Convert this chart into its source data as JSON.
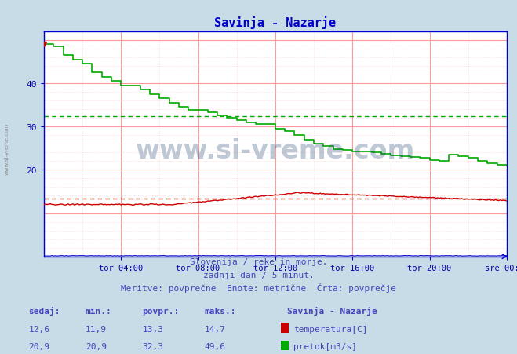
{
  "title": "Savinja - Nazarje",
  "title_color": "#0000cc",
  "bg_color": "#c8dce8",
  "plot_bg_color": "#ffffff",
  "xlabel_ticks": [
    "tor 04:00",
    "tor 08:00",
    "tor 12:00",
    "tor 16:00",
    "tor 20:00",
    "sre 00:00"
  ],
  "yticks": [
    20,
    30,
    40
  ],
  "ylim": [
    0,
    52
  ],
  "xlim": [
    0,
    288
  ],
  "tick_positions": [
    48,
    96,
    144,
    192,
    240,
    288
  ],
  "caption_line1": "Slovenija / reke in morje.",
  "caption_line2": "zadnji dan / 5 minut.",
  "caption_line3": "Meritve: povprečne  Enote: metrične  Črta: povprečje",
  "caption_color": "#4444bb",
  "watermark": "www.si-vreme.com",
  "watermark_color": "#1a3a6a",
  "watermark_alpha": 0.28,
  "legend_title": "Savinja - Nazarje",
  "legend_items": [
    {
      "label": "temperatura[C]",
      "color": "#cc0000"
    },
    {
      "label": "pretok[m3/s]",
      "color": "#00aa00"
    }
  ],
  "table_headers": [
    "sedaj:",
    "min.:",
    "povpr.:",
    "maks.:"
  ],
  "table_rows": [
    {
      "values": [
        "12,6",
        "11,9",
        "13,3",
        "14,7"
      ],
      "color": "#cc0000"
    },
    {
      "values": [
        "20,9",
        "20,9",
        "32,3",
        "49,6"
      ],
      "color": "#00aa00"
    }
  ],
  "avg_temp": 13.3,
  "avg_flow": 32.3,
  "temp_color": "#cc0000",
  "flow_color": "#00aa00",
  "level_color": "#0000cc",
  "dashed_temp_line_y": 13.3,
  "dashed_flow_line_y": 32.3,
  "axis_color": "#0000cc",
  "tick_label_color": "#0000aa",
  "grid_major_color": "#ff9999",
  "grid_minor_color": "#ffcccc"
}
